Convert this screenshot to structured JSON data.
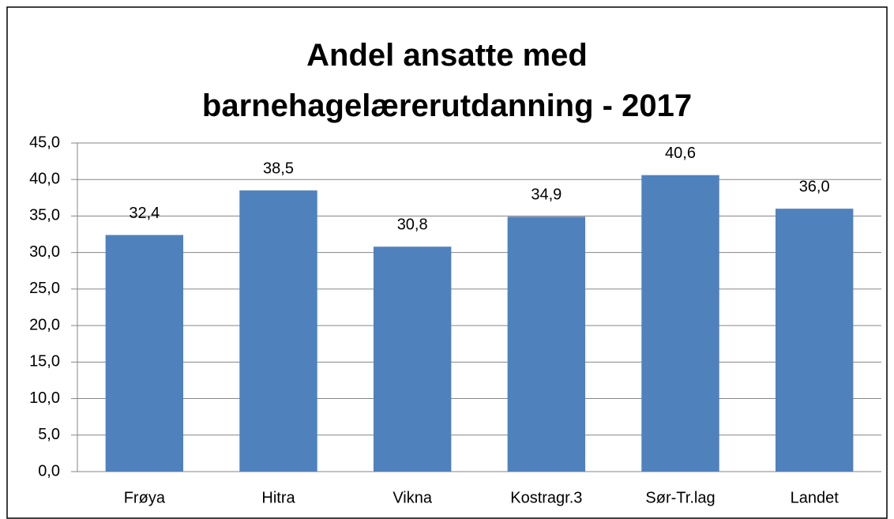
{
  "chart_data": {
    "type": "bar",
    "title": "Andel ansatte med barnehagelærerutdanning - 2017",
    "categories": [
      "Frøya",
      "Hitra",
      "Vikna",
      "Kostragr.3",
      "Sør-Tr.lag",
      "Landet"
    ],
    "values": [
      32.4,
      38.5,
      30.8,
      34.9,
      40.6,
      36.0
    ],
    "value_labels": [
      "32,4",
      "38,5",
      "30,8",
      "34,9",
      "40,6",
      "36,0"
    ],
    "color": "#4f81bd",
    "ylim": [
      0,
      45
    ],
    "yticks": [
      {
        "value": 0,
        "label": "0,0"
      },
      {
        "value": 5,
        "label": "5,0"
      },
      {
        "value": 10,
        "label": "10,0"
      },
      {
        "value": 15,
        "label": "15,0"
      },
      {
        "value": 20,
        "label": "20,0"
      },
      {
        "value": 25,
        "label": "25,0"
      },
      {
        "value": 30,
        "label": "30,0"
      },
      {
        "value": 35,
        "label": "35,0"
      },
      {
        "value": 40,
        "label": "40,0"
      },
      {
        "value": 45,
        "label": "45,0"
      }
    ],
    "grid": true
  }
}
